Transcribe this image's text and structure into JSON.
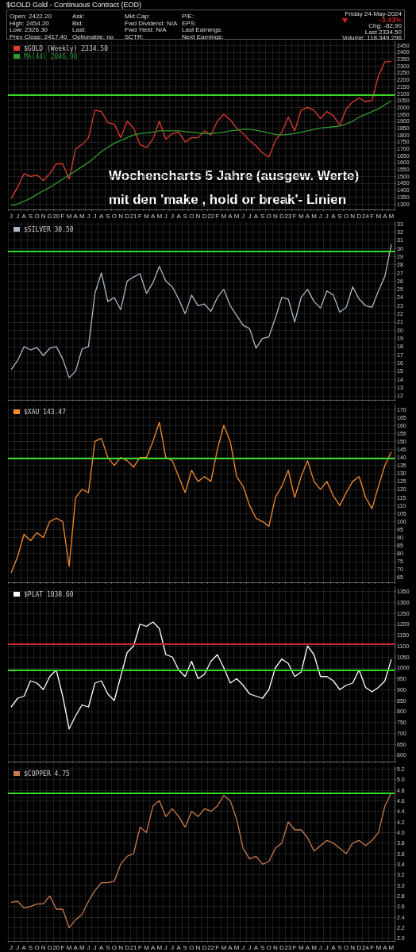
{
  "chart_data": [
    {
      "type": "other",
      "title": "$GOLD Gold - Continuous Contract (EOD)",
      "annotations": [
        "Open: 2422.20",
        "High: 2454.20",
        "Low: 2326.30",
        "Prev Close: 2417.40",
        "Ask:",
        "Bid:",
        "Last:",
        "Optionable: no",
        "Mkt Cap:",
        "Fwd Dividend: N/A",
        "Fwd Yield: N/A",
        "SCTR:",
        "P/E:",
        "EPS:",
        "Last Earnings:",
        "Next Earnings:",
        "Friday 24-May-2024",
        "-3.43%",
        "Chg: -82.90",
        "Last 2334.50",
        "Volume: 118,349,296"
      ]
    },
    {
      "type": "line",
      "legend": "top left",
      "grid": true,
      "categories": [
        "J",
        "J",
        "A",
        "S",
        "O",
        "N",
        "D",
        "20",
        "F",
        "M",
        "A",
        "M",
        "J",
        "J",
        "A",
        "S",
        "O",
        "N",
        "D",
        "21",
        "F",
        "M",
        "A",
        "M",
        "J",
        "J",
        "A",
        "S",
        "O",
        "N",
        "D",
        "22",
        "F",
        "M",
        "A",
        "M",
        "J",
        "J",
        "A",
        "S",
        "O",
        "N",
        "D",
        "23",
        "F",
        "M",
        "A",
        "M",
        "J",
        "J",
        "A",
        "S",
        "O",
        "N",
        "D",
        "24",
        "F",
        "M",
        "A",
        "M"
      ],
      "ylim": [
        1260,
        2480
      ],
      "yticks": [
        1300,
        1350,
        1400,
        1450,
        1500,
        1550,
        1600,
        1650,
        1700,
        1750,
        1800,
        1850,
        1900,
        1950,
        2000,
        2050,
        2100,
        2150,
        2200,
        2250,
        2300,
        2350,
        2400,
        2450
      ],
      "series": [
        {
          "name": "$GOLD (Weekly) 2334.50",
          "color": "#e03a2c",
          "values": [
            1340,
            1420,
            1520,
            1500,
            1510,
            1470,
            1520,
            1590,
            1590,
            1480,
            1700,
            1730,
            1780,
            1980,
            1970,
            1890,
            1880,
            1780,
            1900,
            1850,
            1730,
            1710,
            1770,
            1900,
            1770,
            1810,
            1820,
            1750,
            1780,
            1780,
            1830,
            1800,
            1900,
            1950,
            1910,
            1850,
            1810,
            1760,
            1720,
            1670,
            1640,
            1760,
            1820,
            1930,
            1830,
            1980,
            2000,
            1980,
            1920,
            1970,
            1940,
            1870,
            1990,
            2040,
            2070,
            2040,
            2050,
            2230,
            2330,
            2334.5
          ]
        },
        {
          "name": "MA(44) 2046.98",
          "color": "#2e9a2e",
          "values": [
            1290,
            1300,
            1320,
            1340,
            1370,
            1395,
            1420,
            1450,
            1480,
            1510,
            1540,
            1570,
            1600,
            1640,
            1680,
            1710,
            1740,
            1760,
            1780,
            1800,
            1810,
            1815,
            1820,
            1830,
            1830,
            1830,
            1830,
            1825,
            1820,
            1815,
            1810,
            1810,
            1815,
            1820,
            1830,
            1835,
            1840,
            1840,
            1835,
            1825,
            1815,
            1805,
            1800,
            1805,
            1810,
            1820,
            1830,
            1840,
            1850,
            1855,
            1860,
            1865,
            1880,
            1900,
            1930,
            1950,
            1970,
            1990,
            2020,
            2047
          ]
        }
      ],
      "ref_lines": [
        {
          "axis": "y",
          "value": 2090,
          "color": "#33dd22"
        }
      ],
      "annotations": [
        "Wochencharts 5 Jahre (ausgew. Werte)",
        "mit den 'make , hold or break'- Linien"
      ]
    },
    {
      "type": "line",
      "legend": "top left",
      "grid": true,
      "categories": [
        null,
        null,
        null,
        null,
        null,
        null,
        null,
        null,
        null,
        null,
        null,
        null,
        null,
        null,
        null,
        null,
        null,
        null,
        null,
        null,
        null,
        null,
        null,
        null,
        null,
        null,
        null,
        null,
        null,
        null,
        null,
        null,
        null,
        null,
        null,
        null,
        null,
        null,
        null,
        null,
        null,
        null,
        null,
        null,
        null,
        null,
        null,
        null,
        null,
        null,
        null,
        null,
        null,
        null,
        null,
        null,
        null,
        null,
        null,
        null
      ],
      "ylim": [
        11.5,
        33.2
      ],
      "yticks": [
        12,
        13,
        14,
        15,
        16,
        17,
        18,
        19,
        20,
        21,
        22,
        23,
        24,
        25,
        26,
        27,
        28,
        29,
        30,
        31,
        32,
        33
      ],
      "series": [
        {
          "name": "$SILVER 30.50",
          "color": "#aab6c4",
          "values": [
            15.2,
            16.3,
            18,
            17.6,
            17.9,
            16.9,
            17.8,
            18,
            16.5,
            14.2,
            15,
            17.7,
            18,
            24.5,
            27,
            23.5,
            24,
            22.5,
            26,
            26.5,
            26.9,
            24.5,
            25.8,
            27.8,
            26,
            25.3,
            23.8,
            22,
            24.3,
            23,
            23.2,
            22.3,
            24,
            25,
            23,
            21.8,
            20.6,
            20.2,
            17.8,
            19,
            19.2,
            21.5,
            24,
            23.8,
            21,
            24,
            25,
            23.5,
            22.7,
            24.8,
            24.3,
            22.2,
            22.8,
            25.3,
            23.8,
            23,
            22.8,
            24.8,
            26.6,
            30.5
          ]
        }
      ],
      "ref_lines": [
        {
          "axis": "y",
          "value": 29.6,
          "color": "#33dd22"
        }
      ]
    },
    {
      "type": "line",
      "legend": "top left",
      "grid": true,
      "categories": [
        null,
        null,
        null,
        null,
        null,
        null,
        null,
        null,
        null,
        null,
        null,
        null,
        null,
        null,
        null,
        null,
        null,
        null,
        null,
        null,
        null,
        null,
        null,
        null,
        null,
        null,
        null,
        null,
        null,
        null,
        null,
        null,
        null,
        null,
        null,
        null,
        null,
        null,
        null,
        null,
        null,
        null,
        null,
        null,
        null,
        null,
        null,
        null,
        null,
        null,
        null,
        null,
        null,
        null,
        null,
        null,
        null,
        null,
        null,
        null
      ],
      "ylim": [
        62,
        173
      ],
      "yticks": [
        65,
        70,
        75,
        80,
        85,
        90,
        95,
        100,
        105,
        110,
        115,
        120,
        125,
        130,
        135,
        140,
        145,
        150,
        155,
        160,
        165,
        170
      ],
      "series": [
        {
          "name": "$XAU 143.47",
          "color": "#f28a2e",
          "values": [
            68,
            78,
            92,
            88,
            93,
            90,
            100,
            102,
            100,
            72,
            115,
            120,
            118,
            150,
            152,
            140,
            135,
            140,
            138,
            134,
            140,
            140,
            150,
            162,
            140,
            138,
            128,
            118,
            132,
            125,
            128,
            125,
            145,
            160,
            150,
            128,
            122,
            110,
            102,
            100,
            97,
            115,
            122,
            132,
            115,
            128,
            138,
            125,
            120,
            125,
            116,
            110,
            118,
            125,
            128,
            115,
            108,
            122,
            135,
            143.47
          ]
        }
      ],
      "ref_lines": [
        {
          "axis": "y",
          "value": 139.5,
          "color": "#33dd22"
        }
      ]
    },
    {
      "type": "line",
      "legend": "top left",
      "grid": true,
      "categories": [
        null,
        null,
        null,
        null,
        null,
        null,
        null,
        null,
        null,
        null,
        null,
        null,
        null,
        null,
        null,
        null,
        null,
        null,
        null,
        null,
        null,
        null,
        null,
        null,
        null,
        null,
        null,
        null,
        null,
        null,
        null,
        null,
        null,
        null,
        null,
        null,
        null,
        null,
        null,
        null,
        null,
        null,
        null,
        null,
        null,
        null,
        null,
        null,
        null,
        null,
        null,
        null,
        null,
        null,
        null,
        null,
        null,
        null,
        null,
        null
      ],
      "ylim": [
        570,
        1370
      ],
      "yticks": [
        600,
        650,
        700,
        750,
        800,
        850,
        900,
        950,
        1000,
        1050,
        1100,
        1150,
        1200,
        1250,
        1300,
        1350
      ],
      "series": [
        {
          "name": "$PLAT 1038.60",
          "color": "#ffffff",
          "values": [
            820,
            860,
            870,
            940,
            930,
            900,
            960,
            990,
            870,
            720,
            780,
            830,
            820,
            930,
            940,
            880,
            850,
            960,
            1070,
            1100,
            1200,
            1190,
            1210,
            1180,
            1060,
            1050,
            990,
            960,
            1030,
            950,
            970,
            1030,
            1060,
            1000,
            930,
            950,
            920,
            880,
            870,
            860,
            900,
            1000,
            1040,
            1020,
            960,
            980,
            1100,
            1060,
            960,
            960,
            940,
            900,
            920,
            930,
            990,
            910,
            890,
            910,
            940,
            1038.6
          ]
        }
      ],
      "ref_lines": [
        {
          "axis": "y",
          "value": 1110,
          "color": "#cc2a2a"
        },
        {
          "axis": "y",
          "value": 990,
          "color": "#33dd22"
        }
      ]
    },
    {
      "type": "line",
      "legend": "top left",
      "grid": true,
      "categories": [
        "J",
        "J",
        "A",
        "S",
        "O",
        "N",
        "D",
        "20",
        "F",
        "M",
        "A",
        "M",
        "J",
        "J",
        "A",
        "S",
        "O",
        "N",
        "D",
        "21",
        "F",
        "M",
        "A",
        "M",
        "J",
        "J",
        "A",
        "S",
        "O",
        "N",
        "D",
        "22",
        "F",
        "M",
        "A",
        "M",
        "J",
        "J",
        "A",
        "S",
        "O",
        "N",
        "D",
        "23",
        "F",
        "M",
        "A",
        "M",
        "J",
        "J",
        "A",
        "S",
        "O",
        "N",
        "D",
        "24",
        "F",
        "M",
        "A",
        "M"
      ],
      "ylim": [
        1.95,
        5.25
      ],
      "yticks": [
        {
          "value": 2,
          "label": "2.0"
        },
        2.2,
        2.4,
        2.6,
        2.8,
        {
          "value": 3,
          "label": "3.0"
        },
        3.2,
        3.4,
        3.6,
        3.8,
        {
          "value": 4,
          "label": "4.0"
        },
        4.2,
        4.4,
        4.6,
        4.8,
        {
          "value": 5,
          "label": "5.0"
        },
        5.2
      ],
      "series": [
        {
          "name": "$COPPER 4.75",
          "color": "#c87a4a",
          "values": [
            2.68,
            2.7,
            2.57,
            2.6,
            2.65,
            2.65,
            2.8,
            2.55,
            2.55,
            2.2,
            2.35,
            2.45,
            2.7,
            2.9,
            3.05,
            3.05,
            3.08,
            3.4,
            3.55,
            3.6,
            4.1,
            4,
            4.5,
            4.6,
            4.3,
            4.45,
            4.3,
            4.1,
            4.4,
            4.3,
            4.45,
            4.4,
            4.5,
            4.7,
            4.6,
            4.25,
            3.7,
            3.5,
            3.55,
            3.4,
            3.45,
            3.7,
            3.8,
            4.2,
            4.05,
            4.05,
            3.9,
            3.65,
            3.75,
            3.85,
            3.8,
            3.7,
            3.6,
            3.8,
            3.85,
            3.75,
            3.85,
            4,
            4.5,
            4.75
          ]
        }
      ],
      "ref_lines": [
        {
          "axis": "y",
          "value": 4.75,
          "color": "#33dd22"
        }
      ]
    }
  ]
}
